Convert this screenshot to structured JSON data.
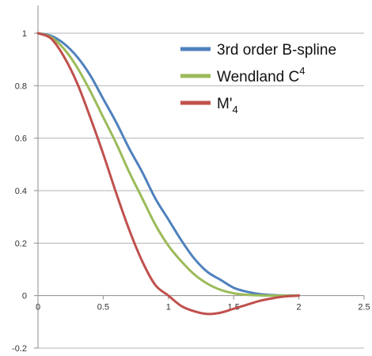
{
  "chart_data": {
    "type": "line",
    "title": "",
    "xlabel": "",
    "ylabel": "",
    "xlim": [
      0,
      2.5
    ],
    "ylim": [
      -0.2,
      1.0
    ],
    "x_ticks": [
      0,
      0.5,
      1,
      1.5,
      2,
      2.5
    ],
    "x_tick_labels": [
      "0",
      "0.5",
      "1",
      "1.5",
      "2",
      "2.5"
    ],
    "y_ticks": [
      -0.2,
      0,
      0.2,
      0.4,
      0.6,
      0.8,
      1
    ],
    "y_tick_labels": [
      "-0.2",
      "0",
      "0.2",
      "0.4",
      "0.6",
      "0.8",
      "1"
    ],
    "grid": "horizontal",
    "legend_position": "top-right",
    "series": [
      {
        "name": "3rd order B-spline",
        "legend_main": "3rd order B-spline",
        "legend_sup": "",
        "legend_sub": "",
        "color": "#4F81BD",
        "x": [
          0,
          0.1,
          0.2,
          0.3,
          0.4,
          0.5,
          0.6,
          0.7,
          0.8,
          0.9,
          1.0,
          1.1,
          1.2,
          1.3,
          1.4,
          1.5,
          1.6,
          1.7,
          1.8,
          1.9,
          2.0
        ],
        "y": [
          1.0,
          0.99,
          0.96,
          0.91,
          0.84,
          0.75,
          0.66,
          0.56,
          0.47,
          0.37,
          0.29,
          0.21,
          0.14,
          0.09,
          0.06,
          0.03,
          0.015,
          0.006,
          0.002,
          0.0003,
          0.0
        ]
      },
      {
        "name": "Wendland C4",
        "legend_main": "Wendland C",
        "legend_sup": "4",
        "legend_sub": "",
        "color": "#9BBB59",
        "x": [
          0,
          0.1,
          0.2,
          0.3,
          0.4,
          0.5,
          0.6,
          0.7,
          0.8,
          0.9,
          1.0,
          1.1,
          1.2,
          1.3,
          1.4,
          1.5,
          1.6,
          1.7,
          1.8,
          1.9,
          2.0
        ],
        "y": [
          1.0,
          0.985,
          0.94,
          0.87,
          0.78,
          0.68,
          0.58,
          0.47,
          0.37,
          0.27,
          0.19,
          0.13,
          0.08,
          0.045,
          0.022,
          0.009,
          0.003,
          0.001,
          0.0002,
          0.0,
          0.0
        ]
      },
      {
        "name": "M'4",
        "legend_main": "M'",
        "legend_sup": "",
        "legend_sub": "4",
        "color": "#C0504D",
        "x": [
          0,
          0.1,
          0.2,
          0.3,
          0.4,
          0.5,
          0.6,
          0.7,
          0.8,
          0.9,
          1.0,
          1.1,
          1.2,
          1.3,
          1.4,
          1.5,
          1.6,
          1.7,
          1.8,
          1.9,
          2.0
        ],
        "y": [
          1.0,
          0.98,
          0.91,
          0.81,
          0.68,
          0.54,
          0.39,
          0.25,
          0.13,
          0.04,
          0.0,
          -0.04,
          -0.06,
          -0.07,
          -0.065,
          -0.05,
          -0.035,
          -0.02,
          -0.01,
          -0.003,
          0.0
        ]
      }
    ]
  }
}
